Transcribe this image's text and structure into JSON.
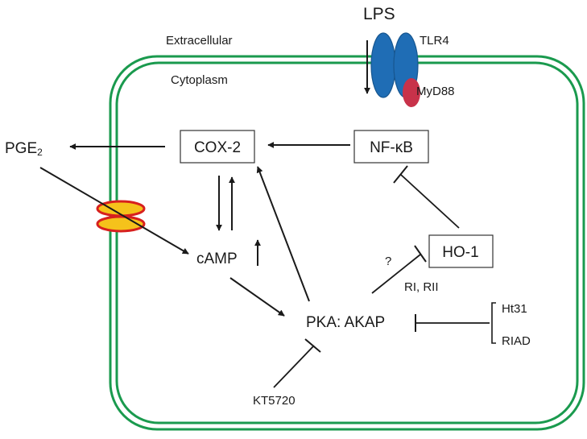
{
  "colors": {
    "membrane": "#1a9a4e",
    "receptor": "#1f6db5",
    "receptor_stroke": "#17568f",
    "adaptor": "#c8324a",
    "channel_fill": "#f5c21b",
    "channel_stroke": "#d7201e",
    "ink": "#1a1a1a"
  },
  "labels": {
    "lps": "LPS",
    "extracellular": "Extracellular",
    "cytoplasm": "Cytoplasm",
    "tlr4": "TLR4",
    "myd88": "MyD88",
    "pge2_main": "PGE",
    "pge2_sub": "2",
    "cox2": "COX-2",
    "nfkb": "NF-κB",
    "camp": "cAMP",
    "ho1": "HO-1",
    "question": "?",
    "ri_rii": "RI, RII",
    "pka_akap": "PKA: AKAP",
    "ht31": "Ht31",
    "riad": "RIAD",
    "kt5720": "KT5720"
  },
  "icons": {
    "receptor": "tlr4-receptor-icon",
    "adaptor": "myd88-adaptor-icon",
    "channel": "membrane-channel-icon"
  }
}
